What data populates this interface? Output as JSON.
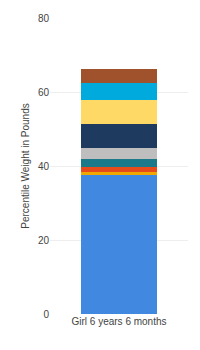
{
  "chart_data": {
    "type": "bar",
    "stacked": true,
    "categories": [
      "Girl 6 years 6 months"
    ],
    "series": [
      {
        "color": "#4189E0",
        "values": [
          37.5
        ]
      },
      {
        "color": "#F0A800",
        "values": [
          0.8
        ]
      },
      {
        "color": "#E84B1A",
        "values": [
          1.5
        ]
      },
      {
        "color": "#1A7A8A",
        "values": [
          2.0
        ]
      },
      {
        "color": "#BEBEBE",
        "values": [
          3.0
        ]
      },
      {
        "color": "#1E3A5F",
        "values": [
          6.5
        ]
      },
      {
        "color": "#FFD966",
        "values": [
          6.5
        ]
      },
      {
        "color": "#00AADD",
        "values": [
          4.5
        ]
      },
      {
        "color": "#A0522D",
        "values": [
          4.0
        ]
      }
    ],
    "ylabel": "Percentile Weight in Pounds",
    "ylim": [
      0,
      80
    ],
    "yticks": [
      0,
      20,
      40,
      60,
      80
    ],
    "grid": true
  }
}
